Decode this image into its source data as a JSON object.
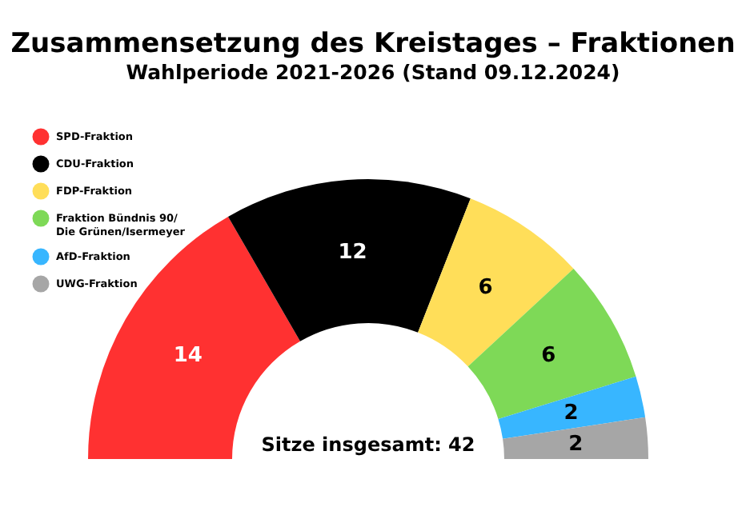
{
  "chart_data": {
    "type": "donut",
    "title": "Zusammensetzung des Kreistages – Fraktionen",
    "subtitle": "Wahlperiode 2021-2026 (Stand 09.12.2024)",
    "categories": [
      "SPD-Fraktion",
      "CDU-Fraktion",
      "FDP-Fraktion",
      "Fraktion Bündnis 90/\nDie Grünen/Isermeyer",
      "AfD-Fraktion",
      "UWG-Fraktion"
    ],
    "values": [
      14,
      12,
      6,
      6,
      2,
      2
    ],
    "colors": [
      "#ff3131",
      "#000000",
      "#ffde59",
      "#7ed957",
      "#38b6ff",
      "#a6a6a6"
    ],
    "data_labels": true,
    "legend": "top left",
    "annotations": [
      "Sitze insgesamt: 42"
    ]
  }
}
